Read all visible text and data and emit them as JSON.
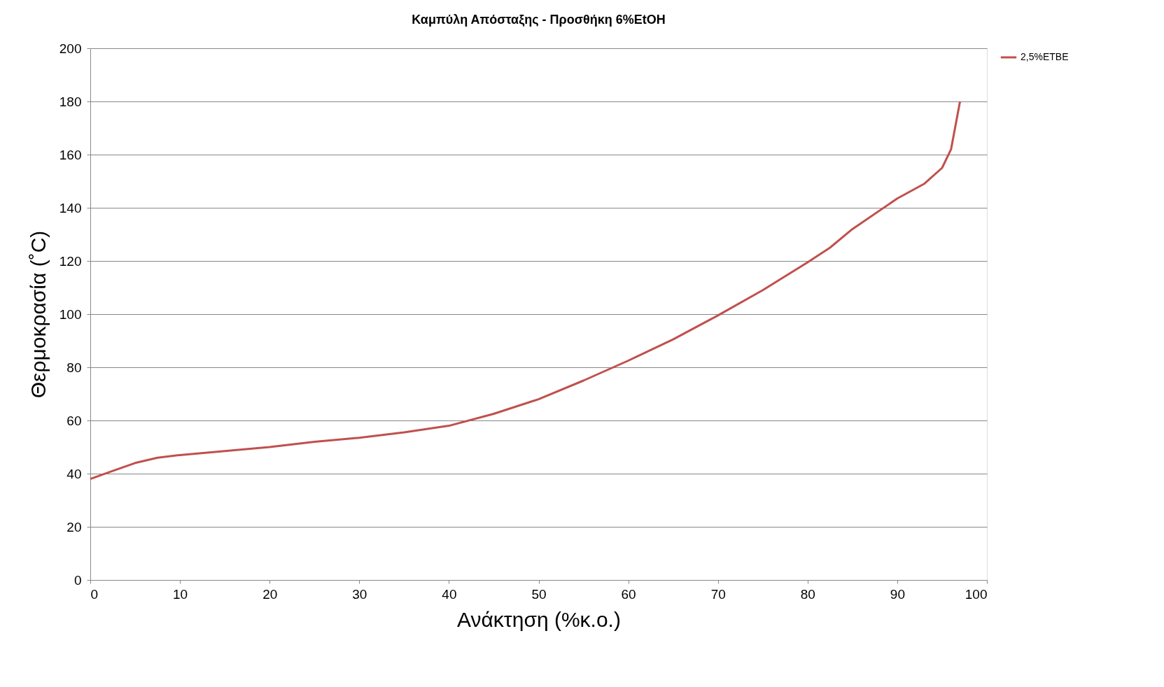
{
  "chart_data": {
    "type": "line",
    "title": "Καμπύλη Απόσταξης - Προσθήκη 6%EtOH",
    "xlabel": "Ανάκτηση (%κ.ο.)",
    "ylabel": "Θερμοκρασία (˚C)",
    "x": [
      0,
      2.5,
      5,
      7.5,
      10,
      15,
      20,
      25,
      30,
      35,
      40,
      45,
      50,
      55,
      60,
      65,
      70,
      75,
      80,
      82.5,
      85,
      90,
      93,
      95,
      96,
      97
    ],
    "series": [
      {
        "name": "2,5%ETBE",
        "color": "#c0504d",
        "values": [
          38,
          41,
          44,
          46,
          47,
          48.5,
          50,
          52,
          53.5,
          55.5,
          58,
          62.5,
          68,
          75,
          82.5,
          90.5,
          99.5,
          109,
          119.5,
          125,
          132,
          143.5,
          149,
          155,
          162,
          180
        ]
      }
    ],
    "xlim": [
      0,
      100
    ],
    "xticks": [
      0,
      10,
      20,
      30,
      40,
      50,
      60,
      70,
      80,
      90,
      100
    ],
    "ylim": [
      0,
      200
    ],
    "yticks": [
      0,
      20,
      40,
      60,
      80,
      100,
      120,
      140,
      160,
      180,
      200
    ],
    "grid": "y",
    "legend": "right",
    "marker": "none",
    "line_style": "solid"
  }
}
